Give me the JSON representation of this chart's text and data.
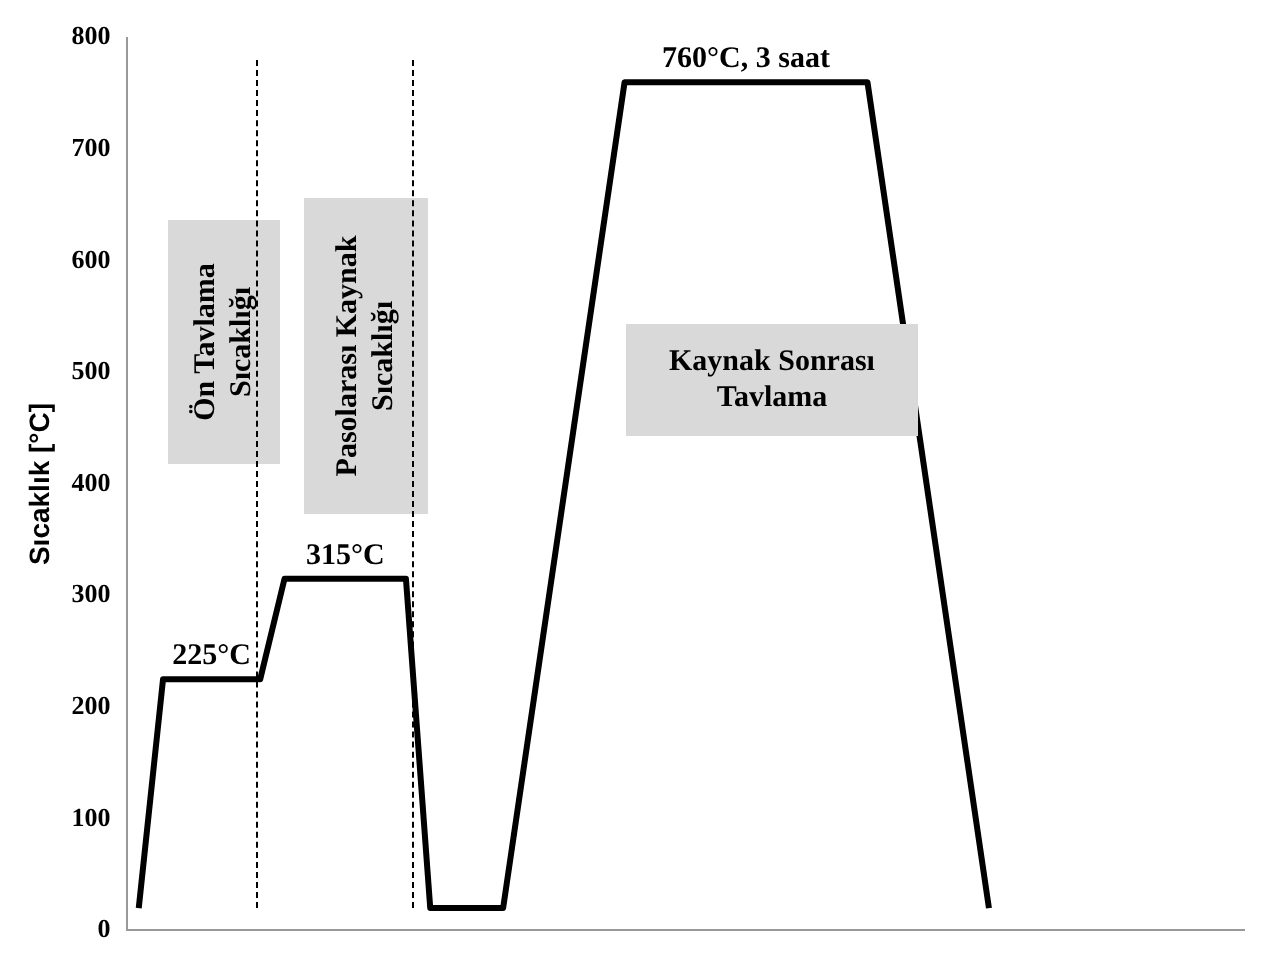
{
  "chart_data": {
    "type": "line",
    "ylabel": "Sıcaklık [°C]",
    "categories": [
      null,
      null,
      null,
      null,
      null,
      null,
      null,
      null,
      null,
      null,
      null,
      null,
      null,
      null,
      null,
      null,
      null,
      null,
      null,
      null,
      null,
      null,
      null,
      null,
      null,
      null,
      null,
      null,
      null,
      null,
      null,
      null,
      null,
      null,
      null,
      null,
      null,
      null,
      null,
      null,
      null,
      null,
      null,
      null,
      null,
      null
    ],
    "values": [
      20,
      225,
      null,
      null,
      null,
      225,
      315,
      null,
      null,
      null,
      null,
      315,
      20,
      null,
      null,
      20,
      null,
      null,
      null,
      null,
      760,
      null,
      null,
      null,
      null,
      null,
      null,
      null,
      null,
      null,
      760,
      null,
      null,
      null,
      null,
      20,
      null,
      null,
      null,
      null,
      null,
      null,
      null,
      null,
      null,
      null
    ],
    "color": "#000000",
    "ylim": [
      0,
      800
    ],
    "yticks": [
      0,
      100,
      200,
      300,
      400,
      500,
      600,
      700,
      800
    ],
    "tick_labels": "y",
    "grid": false,
    "legend": false,
    "marker": "none",
    "line_style": "solid",
    "annotations": [
      {
        "text": "225°C",
        "y": 225
      },
      {
        "text": "315°C",
        "y": 315
      },
      {
        "text": "760°C, 3 saat",
        "y": 760
      },
      "Ön Tavlama Sıcaklığı",
      "Pasolarası Kaynak Sıcaklığı",
      "Kaynak Sonrası Tavlama"
    ]
  }
}
